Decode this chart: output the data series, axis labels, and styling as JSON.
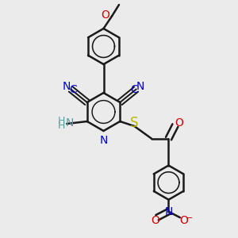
{
  "background_color": "#ebebeb",
  "bond_color": "#1a1a1a",
  "bond_width": 1.8,
  "colors": {
    "N": "#0000cc",
    "O": "#cc0000",
    "S": "#b8b800",
    "C": "#1a1a1a",
    "NH2": "#5f9ea0",
    "bond": "#1a1a1a"
  },
  "label_fontsize": 10,
  "small_fontsize": 8,
  "fig_width": 3.0,
  "fig_height": 3.0,
  "dpi": 100
}
